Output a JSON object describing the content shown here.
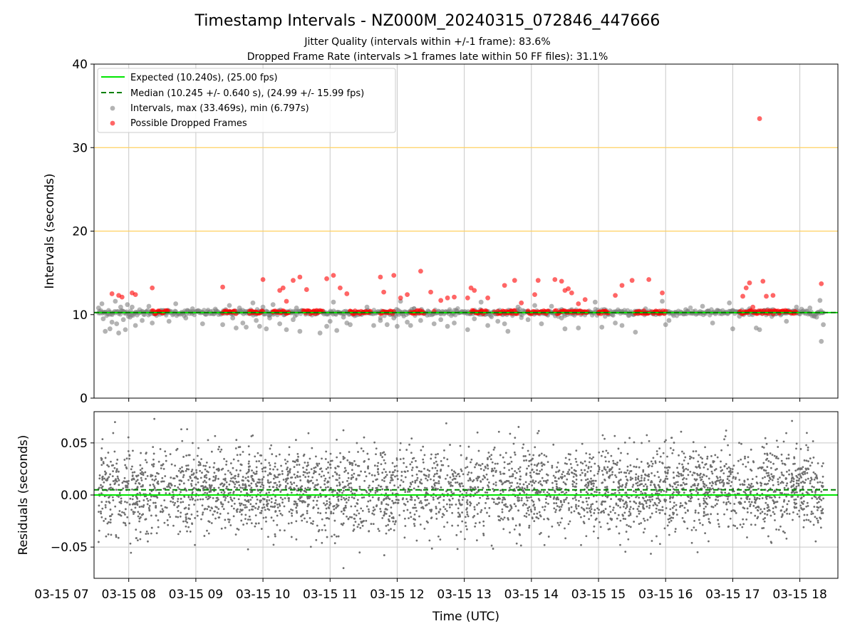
{
  "title": "Timestamp Intervals - NZ000M_20240315_072846_447666",
  "subtitle_1": "Jitter Quality (intervals within +/-1 frame): 83.6%",
  "subtitle_2": "Dropped Frame Rate (intervals >1 frames late within 50 FF files): 31.1%",
  "colors": {
    "expected": "#00e600",
    "median": "#008000",
    "intervals": "#808080",
    "dropped": "#ff0000",
    "threshold": "#ffd060",
    "grid": "#c8c8c8"
  },
  "chart_data": [
    {
      "type": "scatter",
      "ylabel": "Intervals (seconds)",
      "ylim": [
        0,
        40
      ],
      "yticks": [
        "0",
        "10",
        "20",
        "30",
        "40"
      ],
      "xlim_hours": [
        7.483,
        18.567
      ],
      "grid": true,
      "threshold_lines": [
        20,
        30
      ],
      "legend_position": "top-left",
      "legend": {
        "expected": "Expected (10.240s), (25.00 fps)",
        "median": "Median (10.245 +/- 0.640 s), (24.99 +/- 15.99 fps)",
        "intervals": "Intervals, max (33.469s), min (6.797s)",
        "dropped": "Possible Dropped Frames"
      },
      "expected": 10.24,
      "median": 10.245,
      "interval_max": 33.469,
      "interval_min": 6.797,
      "scatter_intervals": [
        [
          7.55,
          10.8
        ],
        [
          7.6,
          11.3
        ],
        [
          7.62,
          9.5
        ],
        [
          7.65,
          8.0
        ],
        [
          7.7,
          10.5
        ],
        [
          7.72,
          8.3
        ],
        [
          7.75,
          9.1
        ],
        [
          7.8,
          11.6
        ],
        [
          7.82,
          8.9
        ],
        [
          7.85,
          7.8
        ],
        [
          7.88,
          10.9
        ],
        [
          7.92,
          9.4
        ],
        [
          7.95,
          8.2
        ],
        [
          7.98,
          11.2
        ],
        [
          8.02,
          9.7
        ],
        [
          8.05,
          10.9
        ],
        [
          8.1,
          8.7
        ],
        [
          8.2,
          9.3
        ],
        [
          8.3,
          11.0
        ],
        [
          8.35,
          9.0
        ],
        [
          8.6,
          9.2
        ],
        [
          8.7,
          11.3
        ],
        [
          8.85,
          9.6
        ],
        [
          8.95,
          10.7
        ],
        [
          9.1,
          8.9
        ],
        [
          9.3,
          10.5
        ],
        [
          9.4,
          8.8
        ],
        [
          9.5,
          11.1
        ],
        [
          9.55,
          9.6
        ],
        [
          9.6,
          8.4
        ],
        [
          9.65,
          10.8
        ],
        [
          9.7,
          9.0
        ],
        [
          9.75,
          8.5
        ],
        [
          9.85,
          11.4
        ],
        [
          9.9,
          9.3
        ],
        [
          9.95,
          8.6
        ],
        [
          10.0,
          10.9
        ],
        [
          10.05,
          8.3
        ],
        [
          10.1,
          9.6
        ],
        [
          10.15,
          11.2
        ],
        [
          10.25,
          8.9
        ],
        [
          10.35,
          8.2
        ],
        [
          10.45,
          9.4
        ],
        [
          10.5,
          10.8
        ],
        [
          10.55,
          8.0
        ],
        [
          10.85,
          7.8
        ],
        [
          10.95,
          8.6
        ],
        [
          11.0,
          9.2
        ],
        [
          11.05,
          11.5
        ],
        [
          11.1,
          8.1
        ],
        [
          11.2,
          9.7
        ],
        [
          11.25,
          9.0
        ],
        [
          11.3,
          8.8
        ],
        [
          11.55,
          10.9
        ],
        [
          11.65,
          8.7
        ],
        [
          11.75,
          9.3
        ],
        [
          11.85,
          8.8
        ],
        [
          11.95,
          9.6
        ],
        [
          12.0,
          8.6
        ],
        [
          12.05,
          11.6
        ],
        [
          12.15,
          9.1
        ],
        [
          12.2,
          8.7
        ],
        [
          12.25,
          10.7
        ],
        [
          12.35,
          9.3
        ],
        [
          12.55,
          8.9
        ],
        [
          12.65,
          9.4
        ],
        [
          12.75,
          8.6
        ],
        [
          12.85,
          9.0
        ],
        [
          13.05,
          8.2
        ],
        [
          13.15,
          9.5
        ],
        [
          13.25,
          11.5
        ],
        [
          13.35,
          8.7
        ],
        [
          13.5,
          9.2
        ],
        [
          13.6,
          8.9
        ],
        [
          13.65,
          8.0
        ],
        [
          13.8,
          10.9
        ],
        [
          13.95,
          9.4
        ],
        [
          14.05,
          11.1
        ],
        [
          14.15,
          8.9
        ],
        [
          14.3,
          11.0
        ],
        [
          14.45,
          9.6
        ],
        [
          14.5,
          8.3
        ],
        [
          14.6,
          10.6
        ],
        [
          14.7,
          8.4
        ],
        [
          14.95,
          11.5
        ],
        [
          15.05,
          8.5
        ],
        [
          15.25,
          9.0
        ],
        [
          15.35,
          8.7
        ],
        [
          15.55,
          7.9
        ],
        [
          15.7,
          10.7
        ],
        [
          15.95,
          11.6
        ],
        [
          16.0,
          8.8
        ],
        [
          16.05,
          9.3
        ],
        [
          16.3,
          10.6
        ],
        [
          16.55,
          11.0
        ],
        [
          16.7,
          9.0
        ],
        [
          16.95,
          11.4
        ],
        [
          17.0,
          8.3
        ],
        [
          17.1,
          9.8
        ],
        [
          17.25,
          10.7
        ],
        [
          17.35,
          8.4
        ],
        [
          17.4,
          8.2
        ],
        [
          17.6,
          10.6
        ],
        [
          17.8,
          9.2
        ],
        [
          17.95,
          10.9
        ],
        [
          18.15,
          10.8
        ],
        [
          18.25,
          9.7
        ],
        [
          18.3,
          11.7
        ],
        [
          18.32,
          6.797
        ],
        [
          18.35,
          8.8
        ]
      ],
      "dropped_frames": [
        [
          7.75,
          12.5
        ],
        [
          7.85,
          12.3
        ],
        [
          7.9,
          12.1
        ],
        [
          8.05,
          12.6
        ],
        [
          8.1,
          12.4
        ],
        [
          8.35,
          13.2
        ],
        [
          8.4,
          10.3
        ],
        [
          8.45,
          10.4
        ],
        [
          8.5,
          10.2
        ],
        [
          9.4,
          13.3
        ],
        [
          9.45,
          10.3
        ],
        [
          9.5,
          10.4
        ],
        [
          9.55,
          10.3
        ],
        [
          9.8,
          10.4
        ],
        [
          9.85,
          10.2
        ],
        [
          9.9,
          10.3
        ],
        [
          10.0,
          14.2
        ],
        [
          10.15,
          10.3
        ],
        [
          10.25,
          12.9
        ],
        [
          10.3,
          13.2
        ],
        [
          10.35,
          11.6
        ],
        [
          10.45,
          14.1
        ],
        [
          10.55,
          14.5
        ],
        [
          10.65,
          13.0
        ],
        [
          10.75,
          10.4
        ],
        [
          10.8,
          10.5
        ],
        [
          10.95,
          14.3
        ],
        [
          11.05,
          14.7
        ],
        [
          11.15,
          13.2
        ],
        [
          11.25,
          12.5
        ],
        [
          11.3,
          10.4
        ],
        [
          11.35,
          10.3
        ],
        [
          11.5,
          10.3
        ],
        [
          11.6,
          10.4
        ],
        [
          11.75,
          14.5
        ],
        [
          11.8,
          12.7
        ],
        [
          11.95,
          14.7
        ],
        [
          12.05,
          12.0
        ],
        [
          12.15,
          12.4
        ],
        [
          12.25,
          10.3
        ],
        [
          12.35,
          15.2
        ],
        [
          12.5,
          12.7
        ],
        [
          12.55,
          10.4
        ],
        [
          12.65,
          11.7
        ],
        [
          12.75,
          12.0
        ],
        [
          12.85,
          12.1
        ],
        [
          13.05,
          12.0
        ],
        [
          13.1,
          13.2
        ],
        [
          13.15,
          12.9
        ],
        [
          13.2,
          10.3
        ],
        [
          13.25,
          10.4
        ],
        [
          13.35,
          12.0
        ],
        [
          13.45,
          10.3
        ],
        [
          13.5,
          10.4
        ],
        [
          13.6,
          13.5
        ],
        [
          13.65,
          10.3
        ],
        [
          13.7,
          10.4
        ],
        [
          13.75,
          14.1
        ],
        [
          13.85,
          11.4
        ],
        [
          13.95,
          10.3
        ],
        [
          14.05,
          12.4
        ],
        [
          14.1,
          14.1
        ],
        [
          14.2,
          10.3
        ],
        [
          14.25,
          10.4
        ],
        [
          14.35,
          14.2
        ],
        [
          14.45,
          14.0
        ],
        [
          14.5,
          12.9
        ],
        [
          14.55,
          13.1
        ],
        [
          14.6,
          12.6
        ],
        [
          14.65,
          10.4
        ],
        [
          14.7,
          11.3
        ],
        [
          14.8,
          11.8
        ],
        [
          15.0,
          10.3
        ],
        [
          15.1,
          10.4
        ],
        [
          15.25,
          12.3
        ],
        [
          15.35,
          13.5
        ],
        [
          15.5,
          14.1
        ],
        [
          15.55,
          10.3
        ],
        [
          15.6,
          10.4
        ],
        [
          15.75,
          14.2
        ],
        [
          15.85,
          10.3
        ],
        [
          15.9,
          10.4
        ],
        [
          15.95,
          12.6
        ],
        [
          17.15,
          12.2
        ],
        [
          17.2,
          13.2
        ],
        [
          17.25,
          13.8
        ],
        [
          17.3,
          10.9
        ],
        [
          17.35,
          10.3
        ],
        [
          17.45,
          14.0
        ],
        [
          17.5,
          12.2
        ],
        [
          17.6,
          12.3
        ],
        [
          17.7,
          10.3
        ],
        [
          17.8,
          10.4
        ],
        [
          17.4,
          33.469
        ],
        [
          18.32,
          13.7
        ]
      ],
      "dropped_clusters": [
        [
          8.35,
          8.6
        ],
        [
          9.4,
          9.6
        ],
        [
          9.8,
          10.0
        ],
        [
          10.15,
          10.4
        ],
        [
          10.6,
          10.9
        ],
        [
          11.3,
          11.6
        ],
        [
          11.75,
          11.95
        ],
        [
          12.2,
          12.4
        ],
        [
          13.1,
          13.35
        ],
        [
          13.5,
          13.8
        ],
        [
          13.95,
          14.25
        ],
        [
          14.35,
          14.85
        ],
        [
          15.0,
          15.15
        ],
        [
          15.55,
          15.75
        ],
        [
          15.8,
          16.0
        ],
        [
          17.1,
          17.95
        ]
      ]
    },
    {
      "type": "scatter",
      "xlabel": "Time (UTC)",
      "ylabel": "Residuals (seconds)",
      "ylim": [
        -0.08,
        0.08
      ],
      "yticks": [
        "−0.05",
        "0.00",
        "0.05"
      ],
      "xlim_hours": [
        7.483,
        18.567
      ],
      "xticks": [
        "03-15 07",
        "03-15 08",
        "03-15 09",
        "03-15 10",
        "03-15 11",
        "03-15 12",
        "03-15 13",
        "03-15 14",
        "03-15 15",
        "03-15 16",
        "03-15 17",
        "03-15 18"
      ],
      "grid": true,
      "expected_residual": 0.0,
      "median_residual": 0.005,
      "residual_start_hour": 7.55,
      "residual_end_hour": 18.35,
      "residual_count": 3800,
      "residual_spread": 0.02,
      "residual_offset": 0.005
    }
  ]
}
